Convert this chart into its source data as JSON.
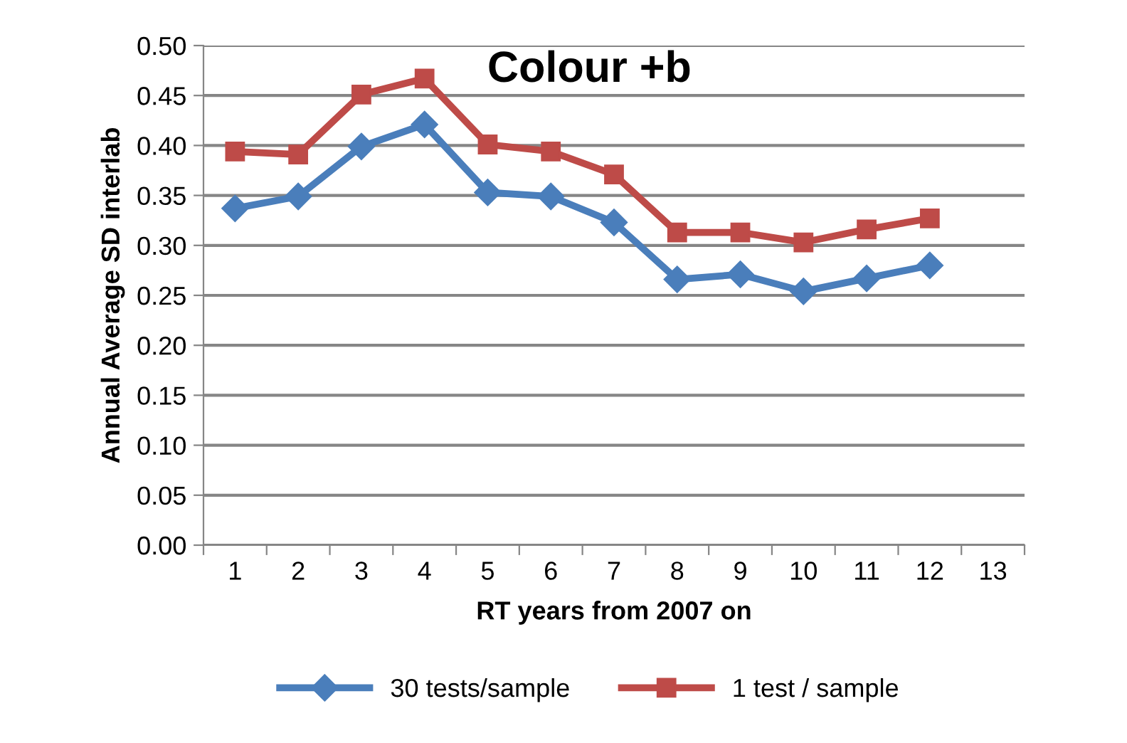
{
  "chart_data": {
    "type": "line",
    "title": "Colour +b",
    "xlabel": "RT years from 2007 on",
    "ylabel": "Annual Average SD interlab",
    "categories": [
      "1",
      "2",
      "3",
      "4",
      "5",
      "6",
      "7",
      "8",
      "9",
      "10",
      "11",
      "12",
      "13"
    ],
    "series": [
      {
        "name": "30 tests/sample",
        "color": "#4a7ebb",
        "marker": "diamond",
        "values": [
          0.337,
          0.349,
          0.399,
          0.421,
          0.353,
          0.349,
          0.323,
          0.266,
          0.271,
          0.254,
          0.267,
          0.28,
          null
        ]
      },
      {
        "name": "1 test / sample",
        "color": "#be4b48",
        "marker": "square",
        "values": [
          0.394,
          0.391,
          0.451,
          0.467,
          0.401,
          0.394,
          0.371,
          0.313,
          0.313,
          0.303,
          0.316,
          0.327,
          null
        ]
      }
    ],
    "ylim": [
      0,
      0.5
    ],
    "yticks": [
      {
        "value": 0,
        "label": "0.00"
      },
      {
        "value": 0.05,
        "label": "0.05"
      },
      {
        "value": 0.1,
        "label": "0.10"
      },
      {
        "value": 0.15,
        "label": "0.15"
      },
      {
        "value": 0.2,
        "label": "0.20"
      },
      {
        "value": 0.25,
        "label": "0.25"
      },
      {
        "value": 0.3,
        "label": "0.30"
      },
      {
        "value": 0.35,
        "label": "0.35"
      },
      {
        "value": 0.4,
        "label": "0.40"
      },
      {
        "value": 0.45,
        "label": "0.45"
      },
      {
        "value": 0.5,
        "label": "0.50"
      }
    ],
    "grid": "y",
    "legend": "bottom",
    "line_style": "solid"
  }
}
